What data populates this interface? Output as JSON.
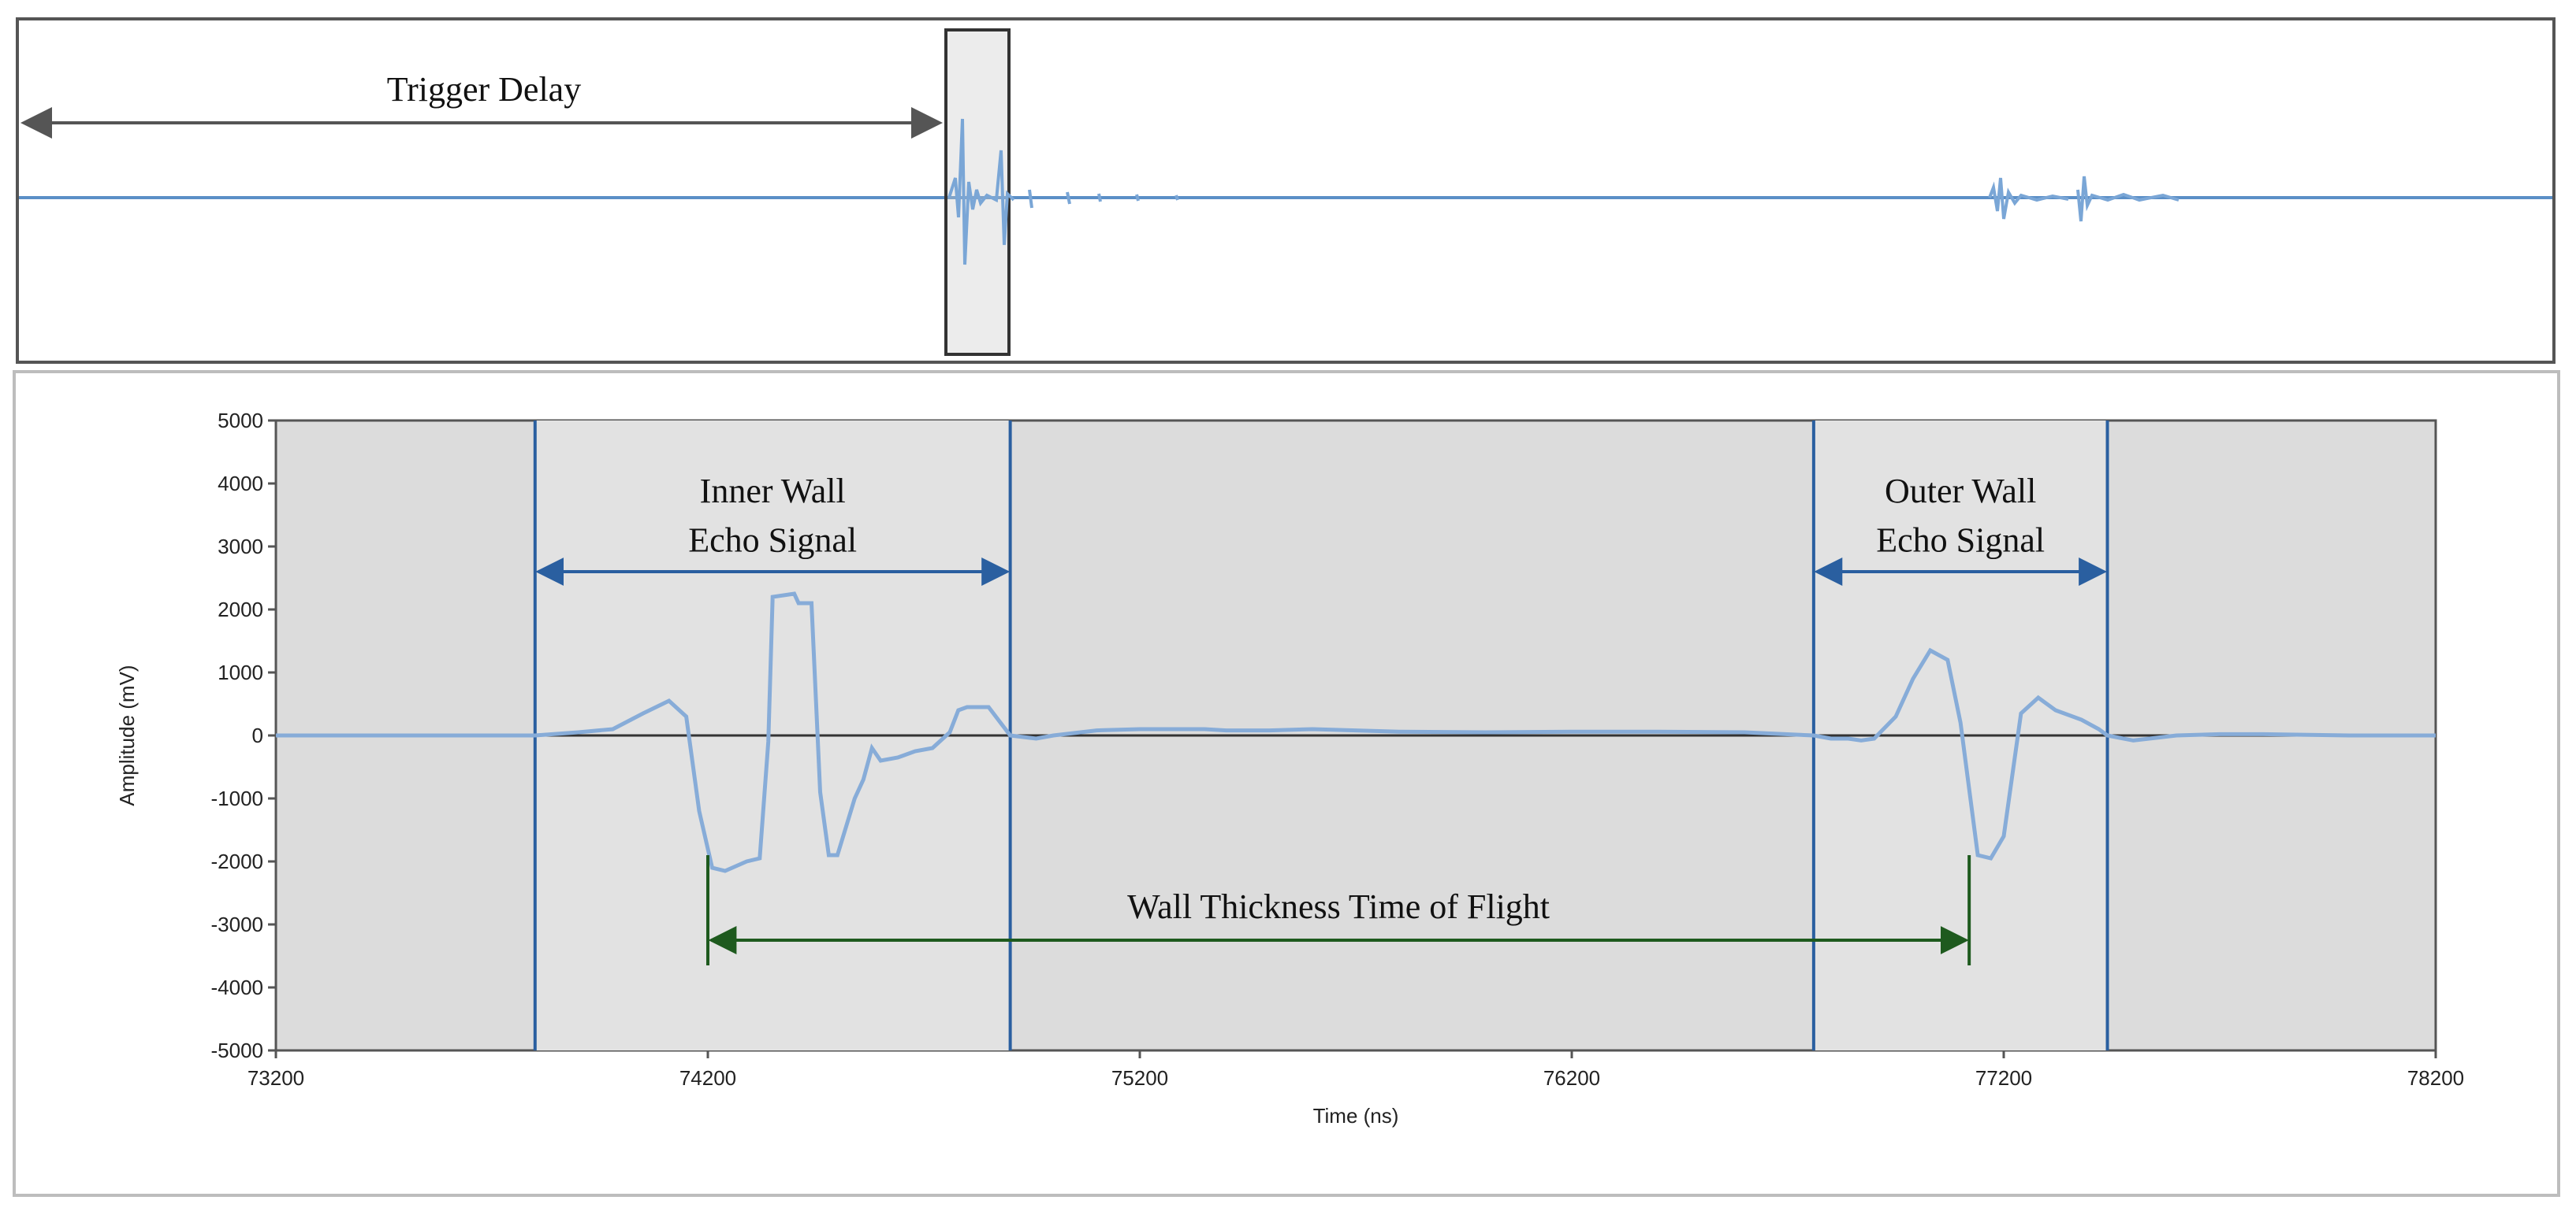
{
  "overview": {
    "annotation": "Trigger Delay"
  },
  "chart_data": {
    "type": "line",
    "xlabel": "Time (ns)",
    "ylabel": "Amplitude (mV)",
    "xlim": [
      73200,
      78200
    ],
    "ylim": [
      -5000,
      5000
    ],
    "x_ticks": [
      73200,
      74200,
      75200,
      76200,
      77200,
      78200
    ],
    "y_ticks": [
      5000,
      4000,
      3000,
      2000,
      1000,
      0,
      -1000,
      -2000,
      -3000,
      -4000,
      -5000
    ],
    "grid": false,
    "gates": [
      {
        "start": 73800,
        "end": 74900,
        "label_line1": "Inner Wall",
        "label_line2": "Echo Signal"
      },
      {
        "start": 76760,
        "end": 77440,
        "label_line1": "Outer Wall",
        "label_line2": "Echo Signal"
      }
    ],
    "time_of_flight": {
      "start": 74200,
      "end": 77120,
      "label": "Wall Thickness Time of Flight"
    },
    "series": [
      {
        "x": [
          73200,
          73600,
          73800,
          73900,
          73980,
          74050,
          74110,
          74150,
          74180,
          74210,
          74240,
          74290,
          74320,
          74340,
          74350,
          74400,
          74410,
          74440,
          74460,
          74480,
          74500,
          74540,
          74560,
          74580,
          74600,
          74640,
          74680,
          74720,
          74760,
          74780,
          74800,
          74850,
          74900,
          74960,
          75000,
          75100,
          75200,
          75300,
          75350,
          75400,
          75500,
          75600,
          75800,
          76000,
          76200,
          76400,
          76600,
          76760,
          76800,
          76840,
          76870,
          76900,
          76950,
          76990,
          77030,
          77070,
          77100,
          77140,
          77170,
          77200,
          77240,
          77280,
          77320,
          77380,
          77420,
          77440,
          77500,
          77600,
          77700,
          77800,
          78000,
          78200
        ],
        "y": [
          0,
          0,
          0,
          50,
          100,
          350,
          550,
          300,
          -1200,
          -2100,
          -2150,
          -2000,
          -1950,
          -100,
          2200,
          2250,
          2100,
          2100,
          -900,
          -1900,
          -1900,
          -1000,
          -700,
          -200,
          -400,
          -350,
          -250,
          -200,
          50,
          400,
          450,
          450,
          0,
          -50,
          0,
          80,
          100,
          100,
          100,
          80,
          80,
          100,
          60,
          50,
          60,
          60,
          50,
          0,
          -50,
          -50,
          -80,
          -50,
          300,
          900,
          1350,
          1200,
          200,
          -1900,
          -1950,
          -1600,
          350,
          600,
          400,
          250,
          100,
          0,
          -80,
          0,
          20,
          20,
          0,
          0
        ]
      }
    ]
  }
}
